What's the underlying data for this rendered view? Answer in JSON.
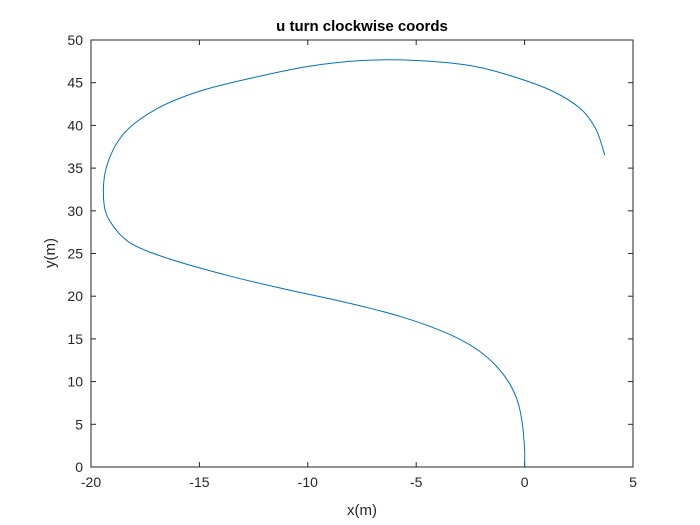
{
  "chart_data": {
    "type": "line",
    "title": "u turn clockwise coords",
    "xlabel": "x(m)",
    "ylabel": "y(m)",
    "xlim": [
      -20,
      5
    ],
    "ylim": [
      0,
      50
    ],
    "xticks": [
      -20,
      -15,
      -10,
      -5,
      0,
      5
    ],
    "yticks": [
      0,
      5,
      10,
      15,
      20,
      25,
      30,
      35,
      40,
      45,
      50
    ],
    "grid": false,
    "line_color": "#0072BD",
    "series": [
      {
        "x": [
          0,
          0,
          -0.1,
          -0.3,
          -0.7,
          -1.3,
          -2.1,
          -3.1,
          -4.3,
          -5.7,
          -7.3,
          -9.0,
          -11.0,
          -13.5,
          -16.3,
          -18.1,
          -19.0,
          -19.4,
          -19.3,
          -18.5,
          -17.0,
          -15.0,
          -12.5,
          -10.0,
          -7.5,
          -5.0,
          -2.5,
          -0.5,
          1.3,
          2.6,
          3.3,
          3.7
        ],
        "y": [
          0,
          2,
          5,
          7.5,
          9.8,
          11.8,
          13.6,
          15.1,
          16.4,
          17.6,
          18.7,
          19.7,
          20.8,
          22.3,
          24.3,
          26.1,
          28.3,
          30.8,
          35,
          39.0,
          41.9,
          44.0,
          45.6,
          46.9,
          47.6,
          47.6,
          47.0,
          45.7,
          44.0,
          41.9,
          39.5,
          36.5
        ]
      }
    ]
  }
}
